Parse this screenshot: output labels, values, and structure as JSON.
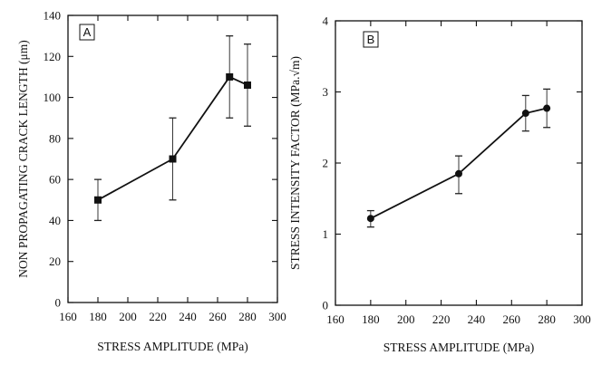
{
  "chart_data": [
    {
      "type": "line",
      "panel_label": "A",
      "xlabel": "STRESS AMPLITUDE (MPa)",
      "ylabel": "NON PROPAGATING CRACK LENGTH (μm)",
      "xlim": [
        160,
        300
      ],
      "ylim": [
        0,
        140
      ],
      "x_ticks": [
        160,
        180,
        200,
        220,
        240,
        260,
        280,
        300
      ],
      "y_ticks": [
        0,
        20,
        40,
        60,
        80,
        100,
        120,
        140
      ],
      "x_tick_labels": [
        "160",
        "180",
        "200",
        "220",
        "240",
        "260",
        "280",
        "300"
      ],
      "y_tick_labels": [
        "0",
        "20",
        "40",
        "60",
        "80",
        "100",
        "120",
        "140"
      ],
      "marker": "square",
      "grid": false,
      "series": [
        {
          "x": [
            180,
            230,
            268,
            280
          ],
          "y": [
            50,
            70,
            110,
            106
          ],
          "y_err_low": [
            40,
            50,
            90,
            86
          ],
          "y_err_high": [
            60,
            90,
            130,
            126
          ]
        }
      ]
    },
    {
      "type": "line",
      "panel_label": "B",
      "xlabel": "STRESS AMPLITUDE (MPa)",
      "ylabel": "STRESS INTENSITY FACTOR (MPa.√m)",
      "xlim": [
        160,
        300
      ],
      "ylim": [
        0,
        4
      ],
      "x_ticks": [
        160,
        180,
        200,
        220,
        240,
        260,
        280,
        300
      ],
      "y_ticks": [
        0,
        1,
        2,
        3,
        4
      ],
      "x_tick_labels": [
        "160",
        "180",
        "200",
        "220",
        "240",
        "260",
        "280",
        "300"
      ],
      "y_tick_labels": [
        "0",
        "1",
        "2",
        "3",
        "4"
      ],
      "marker": "circle",
      "grid": false,
      "series": [
        {
          "x": [
            180,
            230,
            268,
            280
          ],
          "y": [
            1.22,
            1.85,
            2.7,
            2.77
          ],
          "y_err_low": [
            1.1,
            1.57,
            2.45,
            2.5
          ],
          "y_err_high": [
            1.33,
            2.1,
            2.95,
            3.04
          ]
        }
      ]
    }
  ]
}
